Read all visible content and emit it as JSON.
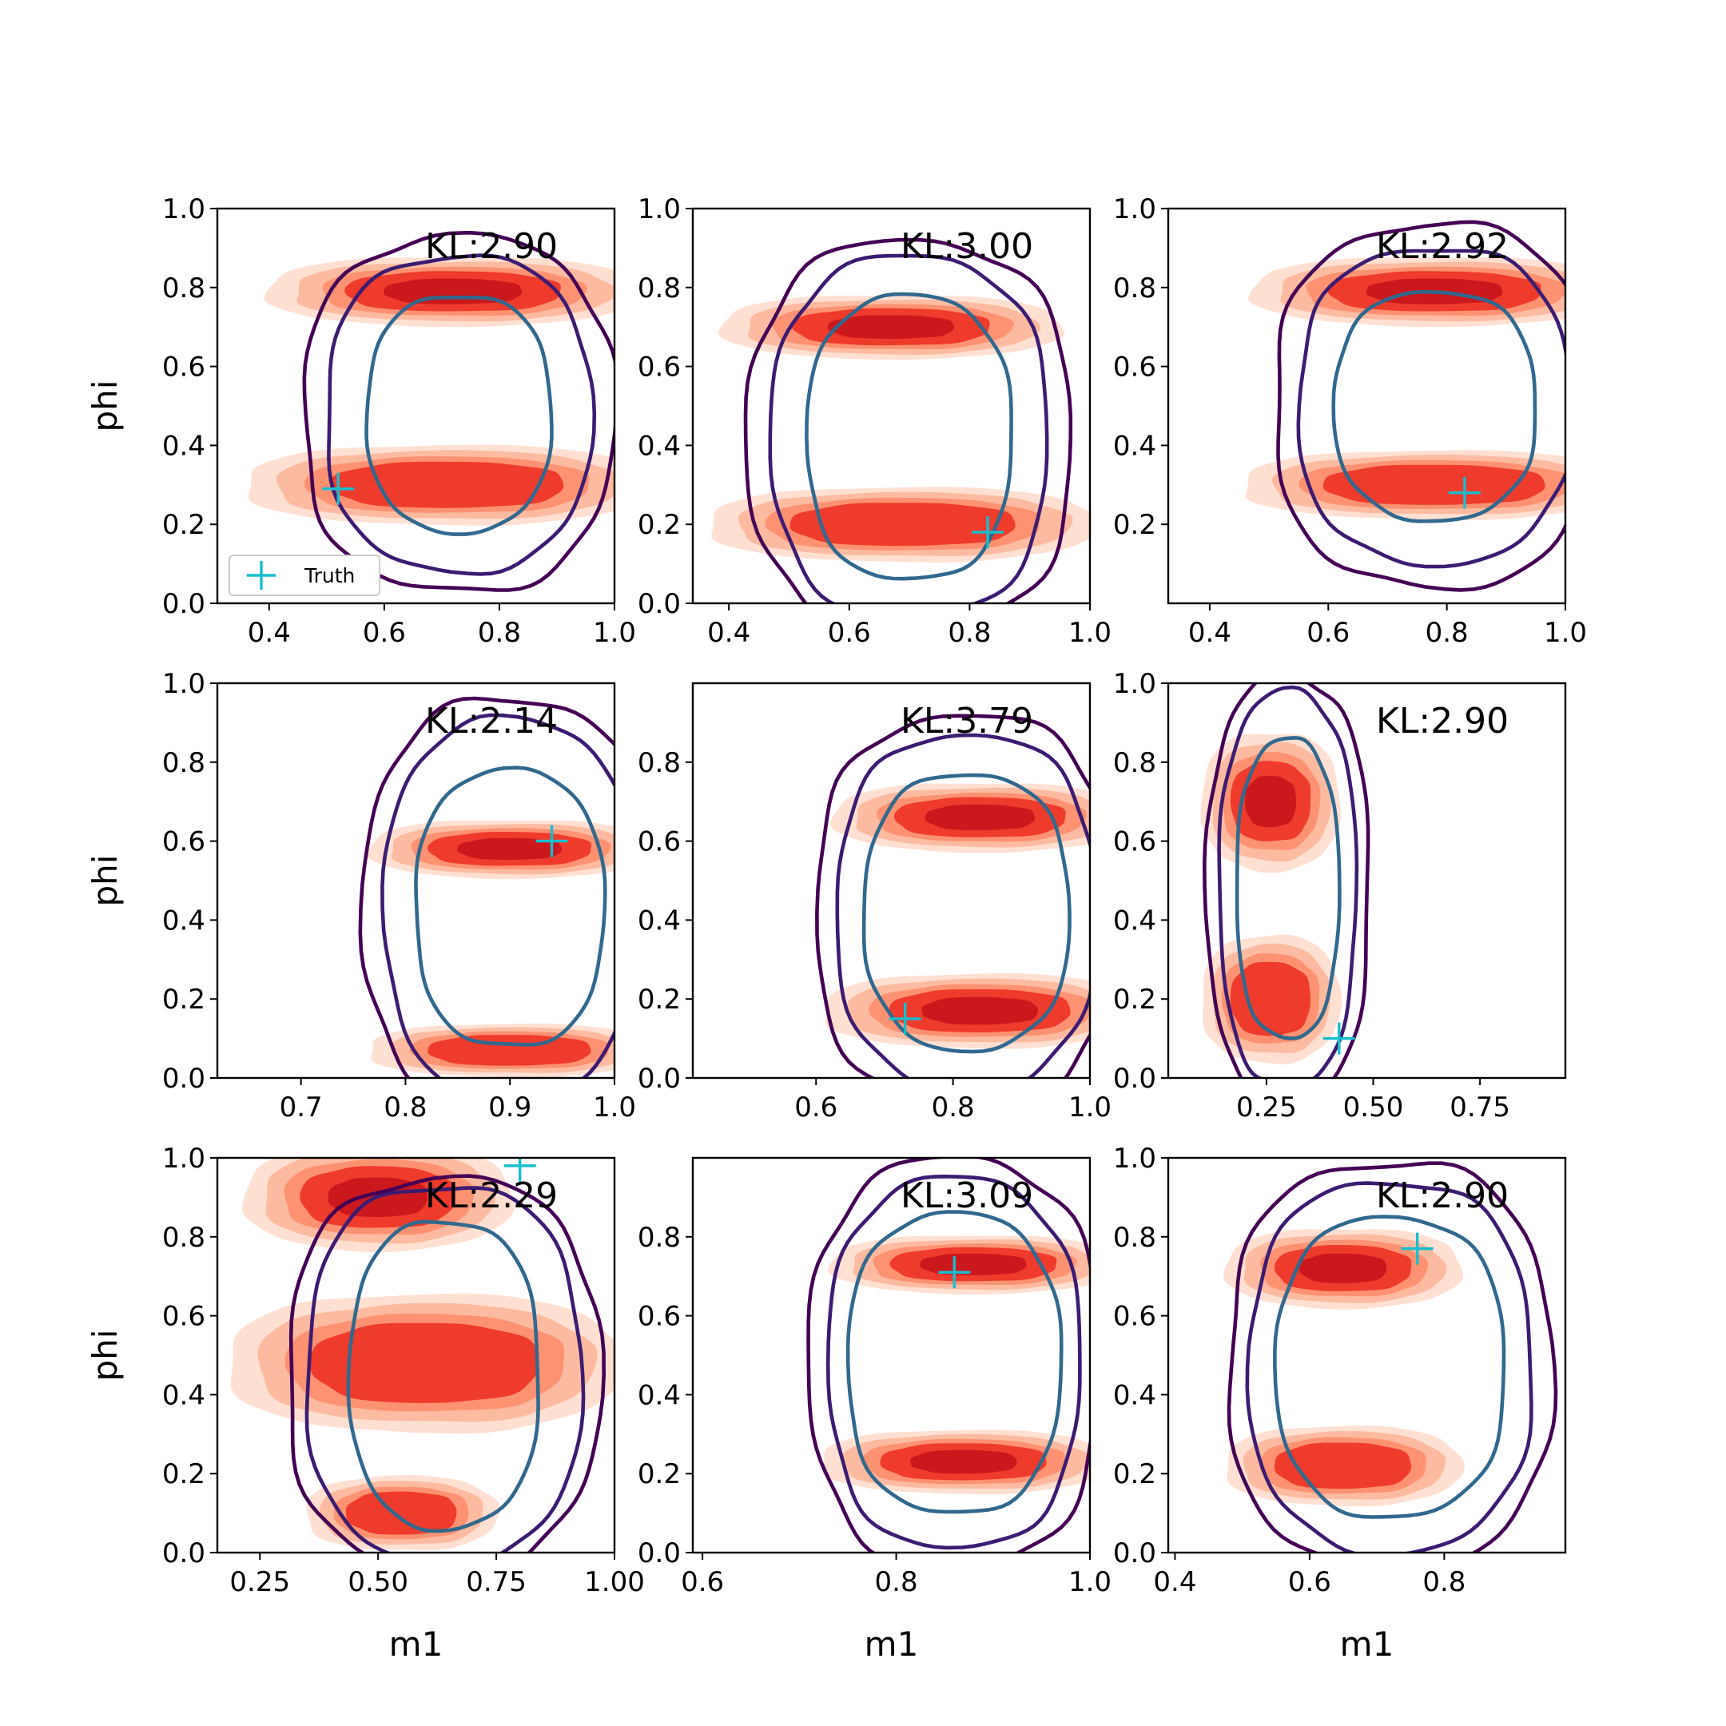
{
  "figure": {
    "type": "grid of 2D density contour plots",
    "rows": 3,
    "cols": 3,
    "legend": {
      "entry": "Truth",
      "marker": "+",
      "color": "#17becf",
      "placement": "lower-left of top-left panel"
    },
    "colors": {
      "reference_density_fill": [
        "#fee0d2",
        "#fcbba1",
        "#fc9272",
        "#ef3b2c",
        "#cb181d"
      ],
      "contour_outer": "#440154",
      "contour_middle": "#3b1c72",
      "contour_inner": "#31688e",
      "truth": "#17becf"
    }
  },
  "chart_data": [
    {
      "type": "contour",
      "panel": "row1-col1",
      "annotation": "KL:2.90",
      "ylabel": "phi",
      "xlabel": "",
      "xlim": [
        0.31,
        1.0
      ],
      "ylim": [
        0.0,
        1.0
      ],
      "xticks": [
        "0.4",
        "0.6",
        "0.8",
        "1.0"
      ],
      "yticks": [
        "0.0",
        "0.2",
        "0.4",
        "0.6",
        "0.8",
        "1.0"
      ],
      "truth": {
        "x": 0.52,
        "y": 0.29
      },
      "blobs": [
        {
          "cx": 0.72,
          "cy": 0.79,
          "rx": 0.24,
          "ry": 0.065
        },
        {
          "cx": 0.71,
          "cy": 0.3,
          "rx": 0.26,
          "ry": 0.075
        }
      ],
      "contour_center": {
        "x": 0.73,
        "y": 0.48
      },
      "contour_radii": [
        [
          0.16,
          0.3
        ],
        [
          0.23,
          0.4
        ],
        [
          0.27,
          0.45
        ]
      ],
      "show_legend": true
    },
    {
      "type": "contour",
      "panel": "row1-col2",
      "annotation": "KL:3.00",
      "ylabel": "",
      "xlabel": "",
      "xlim": [
        0.34,
        1.0
      ],
      "ylim": [
        0.0,
        1.0
      ],
      "xticks": [
        "0.4",
        "0.6",
        "0.8",
        "1.0"
      ],
      "yticks": [
        "0.0",
        "0.2",
        "0.4",
        "0.6",
        "0.8",
        "1.0"
      ],
      "truth": {
        "x": 0.83,
        "y": 0.18
      },
      "blobs": [
        {
          "cx": 0.67,
          "cy": 0.7,
          "rx": 0.21,
          "ry": 0.06
        },
        {
          "cx": 0.69,
          "cy": 0.2,
          "rx": 0.24,
          "ry": 0.07
        }
      ],
      "contour_center": {
        "x": 0.7,
        "y": 0.42
      },
      "contour_radii": [
        [
          0.17,
          0.36
        ],
        [
          0.23,
          0.46
        ],
        [
          0.27,
          0.5
        ]
      ],
      "show_legend": false
    },
    {
      "type": "contour",
      "panel": "row1-col3",
      "annotation": "KL:2.92",
      "ylabel": "",
      "xlabel": "",
      "xlim": [
        0.33,
        1.0
      ],
      "ylim": [
        0.0,
        1.0
      ],
      "xticks": [
        "0.4",
        "0.6",
        "0.8",
        "1.0"
      ],
      "yticks": [
        "0.2",
        "0.4",
        "0.6",
        "0.8",
        "1.0"
      ],
      "truth": {
        "x": 0.83,
        "y": 0.28
      },
      "blobs": [
        {
          "cx": 0.78,
          "cy": 0.79,
          "rx": 0.23,
          "ry": 0.065
        },
        {
          "cx": 0.78,
          "cy": 0.3,
          "rx": 0.24,
          "ry": 0.065
        }
      ],
      "contour_center": {
        "x": 0.78,
        "y": 0.5
      },
      "contour_radii": [
        [
          0.17,
          0.29
        ],
        [
          0.23,
          0.4
        ],
        [
          0.27,
          0.46
        ]
      ],
      "show_legend": false
    },
    {
      "type": "contour",
      "panel": "row2-col1",
      "annotation": "KL:2.14",
      "ylabel": "phi",
      "xlabel": "",
      "xlim": [
        0.62,
        1.0
      ],
      "ylim": [
        0.0,
        1.0
      ],
      "xticks": [
        "0.7",
        "0.8",
        "0.9",
        "1.0"
      ],
      "yticks": [
        "0.0",
        "0.2",
        "0.4",
        "0.6",
        "0.8",
        "1.0"
      ],
      "truth": {
        "x": 0.94,
        "y": 0.6
      },
      "blobs": [
        {
          "cx": 0.9,
          "cy": 0.58,
          "rx": 0.1,
          "ry": 0.055
        },
        {
          "cx": 0.9,
          "cy": 0.07,
          "rx": 0.1,
          "ry": 0.05
        }
      ],
      "contour_center": {
        "x": 0.9,
        "y": 0.43
      },
      "contour_radii": [
        [
          0.09,
          0.35
        ],
        [
          0.12,
          0.48
        ],
        [
          0.14,
          0.53
        ]
      ],
      "show_legend": false
    },
    {
      "type": "contour",
      "panel": "row2-col2",
      "annotation": "KL:3.79",
      "ylabel": "",
      "xlabel": "",
      "xlim": [
        0.42,
        1.0
      ],
      "ylim": [
        0.0,
        1.0
      ],
      "xticks": [
        "0.6",
        "0.8",
        "1.0"
      ],
      "yticks": [
        "0.0",
        "0.2",
        "0.4",
        "0.6",
        "0.8"
      ],
      "truth": {
        "x": 0.73,
        "y": 0.15
      },
      "blobs": [
        {
          "cx": 0.84,
          "cy": 0.66,
          "rx": 0.16,
          "ry": 0.065
        },
        {
          "cx": 0.84,
          "cy": 0.17,
          "rx": 0.17,
          "ry": 0.07
        }
      ],
      "contour_center": {
        "x": 0.82,
        "y": 0.42
      },
      "contour_radii": [
        [
          0.15,
          0.35
        ],
        [
          0.19,
          0.45
        ],
        [
          0.22,
          0.5
        ]
      ],
      "show_legend": false
    },
    {
      "type": "contour",
      "panel": "row2-col3",
      "annotation": "KL:2.90",
      "ylabel": "",
      "xlabel": "",
      "xlim": [
        0.02,
        0.95
      ],
      "ylim": [
        0.0,
        1.0
      ],
      "xticks": [
        "0.25",
        "0.50",
        "0.75"
      ],
      "yticks": [
        "0.0",
        "0.2",
        "0.4",
        "0.6",
        "0.8",
        "1.0"
      ],
      "truth": {
        "x": 0.42,
        "y": 0.1
      },
      "blobs": [
        {
          "cx": 0.26,
          "cy": 0.7,
          "rx": 0.12,
          "ry": 0.13
        },
        {
          "cx": 0.26,
          "cy": 0.2,
          "rx": 0.12,
          "ry": 0.12
        }
      ],
      "contour_center": {
        "x": 0.3,
        "y": 0.48
      },
      "contour_radii": [
        [
          0.12,
          0.38
        ],
        [
          0.16,
          0.5
        ],
        [
          0.19,
          0.54
        ]
      ],
      "show_legend": false
    },
    {
      "type": "contour",
      "panel": "row3-col1",
      "annotation": "KL:2.29",
      "ylabel": "phi",
      "xlabel": "m1",
      "xlim": [
        0.16,
        1.0
      ],
      "ylim": [
        0.0,
        1.0
      ],
      "xticks": [
        "0.25",
        "0.50",
        "0.75",
        "1.00"
      ],
      "yticks": [
        "0.0",
        "0.2",
        "0.4",
        "0.6",
        "0.8",
        "1.0"
      ],
      "truth": {
        "x": 0.8,
        "y": 0.98
      },
      "blobs": [
        {
          "cx": 0.5,
          "cy": 0.9,
          "rx": 0.21,
          "ry": 0.1
        },
        {
          "cx": 0.6,
          "cy": 0.48,
          "rx": 0.31,
          "ry": 0.13
        },
        {
          "cx": 0.55,
          "cy": 0.1,
          "rx": 0.15,
          "ry": 0.07
        }
      ],
      "contour_center": {
        "x": 0.64,
        "y": 0.45
      },
      "contour_radii": [
        [
          0.2,
          0.39
        ],
        [
          0.29,
          0.48
        ],
        [
          0.33,
          0.5
        ]
      ],
      "show_legend": false
    },
    {
      "type": "contour",
      "panel": "row3-col2",
      "annotation": "KL:3.09",
      "ylabel": "",
      "xlabel": "m1",
      "xlim": [
        0.59,
        1.0
      ],
      "ylim": [
        0.0,
        1.0
      ],
      "xticks": [
        "0.6",
        "0.8",
        "1.0"
      ],
      "yticks": [
        "0.0",
        "0.2",
        "0.4",
        "0.6",
        "0.8"
      ],
      "truth": {
        "x": 0.86,
        "y": 0.71
      },
      "blobs": [
        {
          "cx": 0.88,
          "cy": 0.73,
          "rx": 0.11,
          "ry": 0.055
        },
        {
          "cx": 0.87,
          "cy": 0.23,
          "rx": 0.11,
          "ry": 0.06
        }
      ],
      "contour_center": {
        "x": 0.86,
        "y": 0.48
      },
      "contour_radii": [
        [
          0.11,
          0.38
        ],
        [
          0.13,
          0.47
        ],
        [
          0.15,
          0.52
        ]
      ],
      "show_legend": false
    },
    {
      "type": "contour",
      "panel": "row3-col3",
      "annotation": "KL:2.90",
      "ylabel": "",
      "xlabel": "m1",
      "xlim": [
        0.39,
        0.98
      ],
      "ylim": [
        0.0,
        1.0
      ],
      "xticks": [
        "0.4",
        "0.6",
        "0.8"
      ],
      "yticks": [
        "0.0",
        "0.2",
        "0.4",
        "0.6",
        "0.8",
        "1.0"
      ],
      "truth": {
        "x": 0.76,
        "y": 0.77
      },
      "blobs": [
        {
          "cx": 0.65,
          "cy": 0.72,
          "rx": 0.13,
          "ry": 0.075
        },
        {
          "cx": 0.65,
          "cy": 0.22,
          "rx": 0.13,
          "ry": 0.075
        }
      ],
      "contour_center": {
        "x": 0.72,
        "y": 0.47
      },
      "contour_radii": [
        [
          0.17,
          0.38
        ],
        [
          0.21,
          0.47
        ],
        [
          0.24,
          0.52
        ]
      ],
      "show_legend": false
    }
  ]
}
